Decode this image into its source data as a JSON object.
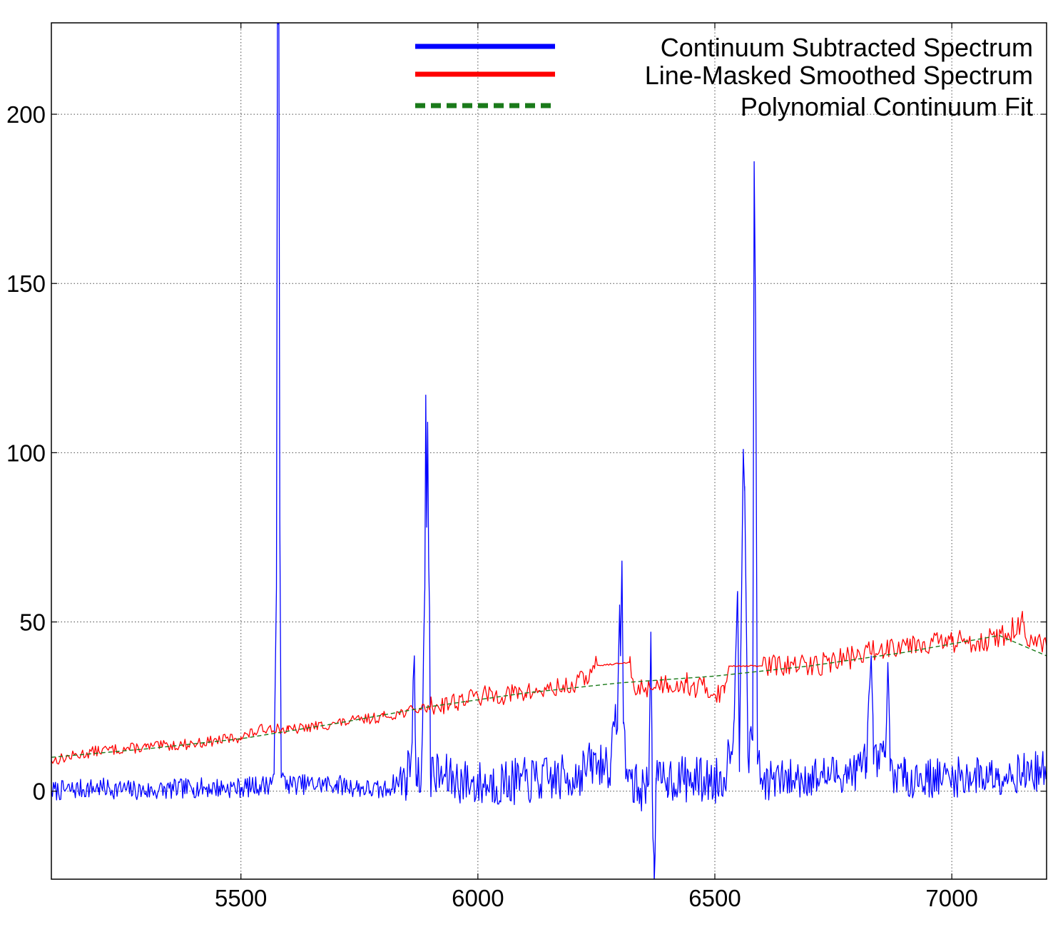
{
  "chart_data": {
    "type": "line",
    "title": "",
    "xlabel": "",
    "ylabel": "",
    "xlim": [
      5100,
      7200
    ],
    "ylim": [
      -26,
      227
    ],
    "xticks": [
      5500,
      6000,
      6500,
      7000
    ],
    "yticks": [
      0,
      50,
      100,
      150,
      200
    ],
    "xtick_labels": [
      "5500",
      "6000",
      "6500",
      "7000"
    ],
    "ytick_labels": [
      "0",
      "50",
      "100",
      "150",
      "200"
    ],
    "grid": true,
    "legend_position": "top-right",
    "series": [
      {
        "name": "Continuum Subtracted Spectrum",
        "color": "#0000ff",
        "style": "solid",
        "noise_seed": 7,
        "points": [
          [
            5100,
            0
          ],
          [
            5200,
            1
          ],
          [
            5300,
            0
          ],
          [
            5400,
            1
          ],
          [
            5500,
            1
          ],
          [
            5560,
            2
          ],
          [
            5570,
            5
          ],
          [
            5575,
            60
          ],
          [
            5577,
            228
          ],
          [
            5580,
            228
          ],
          [
            5582,
            80
          ],
          [
            5585,
            4
          ],
          [
            5600,
            2
          ],
          [
            5700,
            2
          ],
          [
            5800,
            0
          ],
          [
            5820,
            2
          ],
          [
            5850,
            4
          ],
          [
            5860,
            12
          ],
          [
            5866,
            40
          ],
          [
            5870,
            5
          ],
          [
            5880,
            2
          ],
          [
            5888,
            60
          ],
          [
            5890,
            117
          ],
          [
            5892,
            78
          ],
          [
            5894,
            109
          ],
          [
            5896,
            70
          ],
          [
            5898,
            54
          ],
          [
            5900,
            5
          ],
          [
            6000,
            2
          ],
          [
            6100,
            3
          ],
          [
            6200,
            4
          ],
          [
            6240,
            8
          ],
          [
            6280,
            8
          ],
          [
            6295,
            25
          ],
          [
            6299,
            55
          ],
          [
            6301,
            40
          ],
          [
            6304,
            68
          ],
          [
            6307,
            20
          ],
          [
            6315,
            5
          ],
          [
            6340,
            0
          ],
          [
            6360,
            2
          ],
          [
            6365,
            47
          ],
          [
            6368,
            0
          ],
          [
            6372,
            -27
          ],
          [
            6376,
            2
          ],
          [
            6400,
            4
          ],
          [
            6500,
            3
          ],
          [
            6520,
            4
          ],
          [
            6540,
            20
          ],
          [
            6548,
            59
          ],
          [
            6552,
            10
          ],
          [
            6560,
            101
          ],
          [
            6563,
            90
          ],
          [
            6570,
            10
          ],
          [
            6580,
            15
          ],
          [
            6583,
            186
          ],
          [
            6586,
            140
          ],
          [
            6590,
            8
          ],
          [
            6600,
            3
          ],
          [
            6700,
            4
          ],
          [
            6800,
            6
          ],
          [
            6820,
            10
          ],
          [
            6830,
            40
          ],
          [
            6835,
            8
          ],
          [
            6860,
            10
          ],
          [
            6865,
            38
          ],
          [
            6870,
            6
          ],
          [
            6900,
            4
          ],
          [
            7000,
            4
          ],
          [
            7100,
            5
          ],
          [
            7200,
            6
          ]
        ]
      },
      {
        "name": "Line-Masked Smoothed Spectrum",
        "color": "#ff0000",
        "style": "solid",
        "noise_seed": 13,
        "points": [
          [
            5100,
            9
          ],
          [
            5200,
            12
          ],
          [
            5300,
            13
          ],
          [
            5400,
            14
          ],
          [
            5500,
            16
          ],
          [
            5560,
            19
          ],
          [
            5600,
            18
          ],
          [
            5700,
            20
          ],
          [
            5800,
            22
          ],
          [
            5900,
            25
          ],
          [
            6000,
            28
          ],
          [
            6100,
            29
          ],
          [
            6200,
            31
          ],
          [
            6240,
            35
          ],
          [
            6245,
            37
          ],
          [
            6320,
            38
          ],
          [
            6330,
            30
          ],
          [
            6400,
            32
          ],
          [
            6440,
            32
          ],
          [
            6450,
            31
          ],
          [
            6520,
            29
          ],
          [
            6530,
            37
          ],
          [
            6600,
            37
          ],
          [
            6700,
            37
          ],
          [
            6800,
            40
          ],
          [
            6900,
            44
          ],
          [
            7000,
            44
          ],
          [
            7100,
            45
          ],
          [
            7150,
            50
          ],
          [
            7160,
            43
          ],
          [
            7200,
            43
          ]
        ]
      },
      {
        "name": "Polynomial Continuum Fit",
        "color": "#1a7a1a",
        "style": "dashed",
        "noise_seed": 0,
        "points": [
          [
            5100,
            10
          ],
          [
            5300,
            12.5
          ],
          [
            5500,
            15.5
          ],
          [
            5700,
            20
          ],
          [
            5900,
            25
          ],
          [
            6100,
            29
          ],
          [
            6300,
            32
          ],
          [
            6500,
            34
          ],
          [
            6700,
            37
          ],
          [
            6900,
            41
          ],
          [
            7100,
            46
          ],
          [
            7200,
            40
          ]
        ]
      }
    ]
  }
}
